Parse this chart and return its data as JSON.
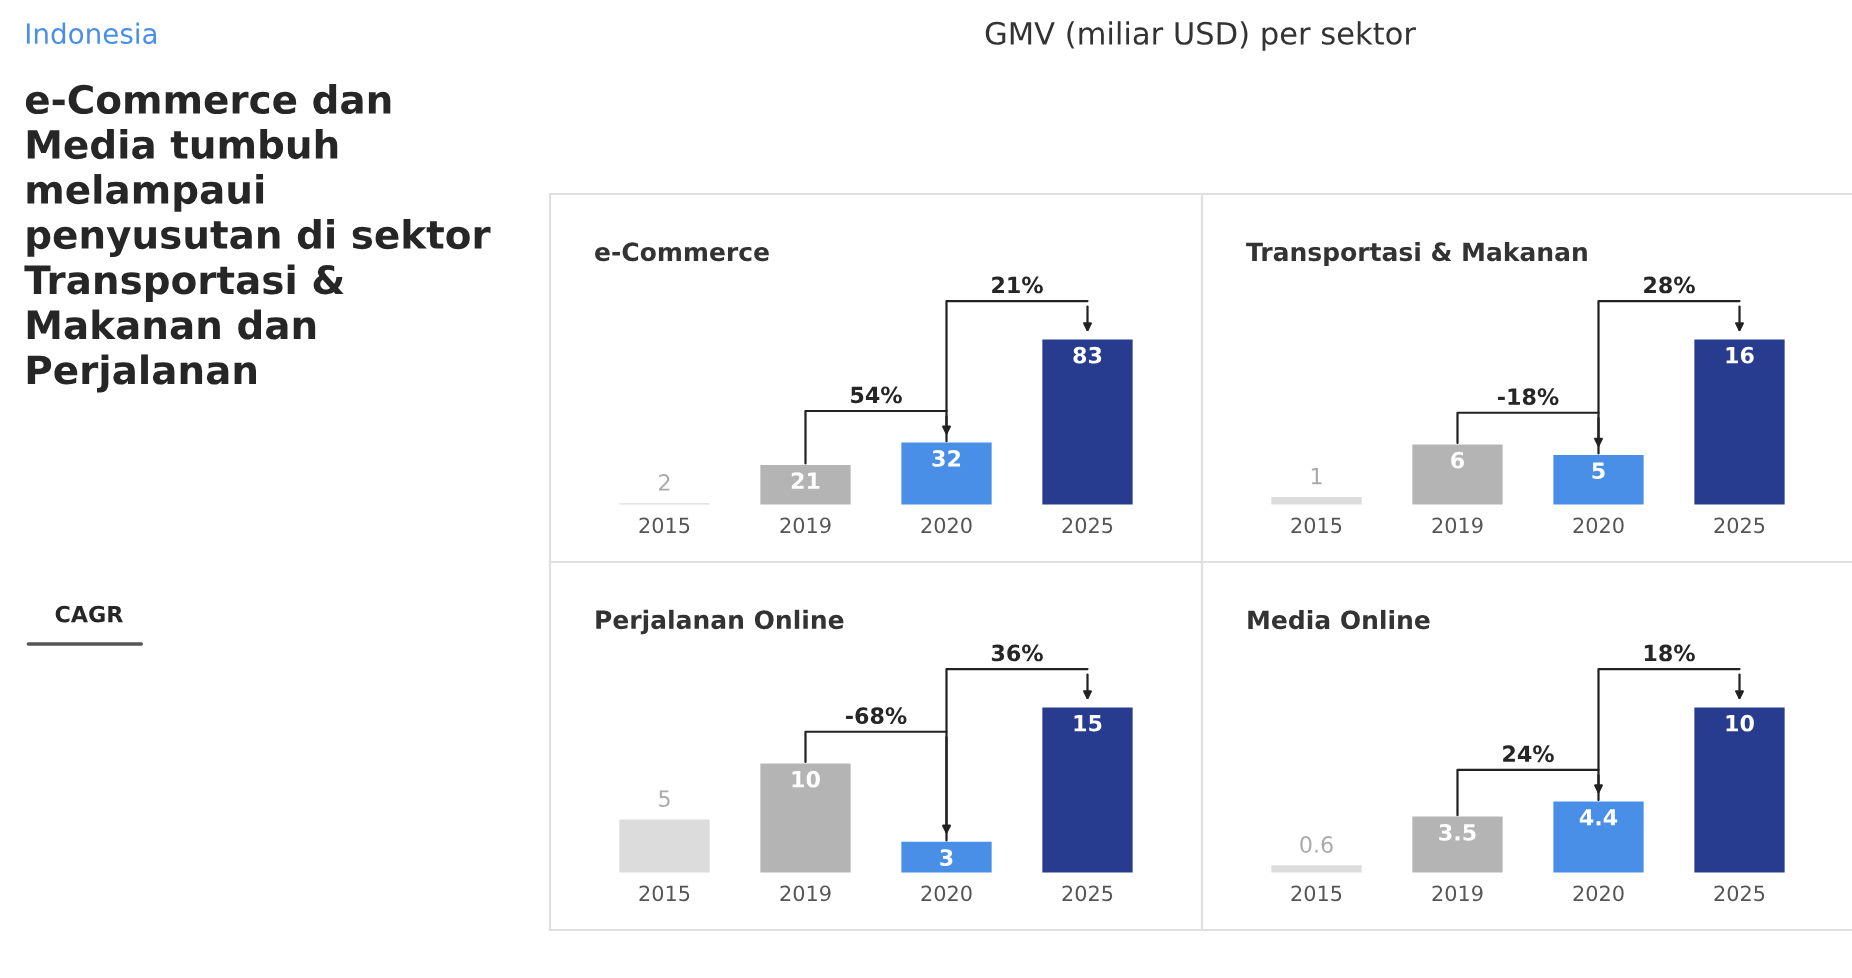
{
  "chart_data": [
    {
      "type": "other",
      "subtitle": "Indonesia",
      "title": "e-Commerce dan Media tumbuh melampaui penyusutan di sektor Transportasi & Makanan dan Perjalanan",
      "annotations": [
        "CAGR",
        "GMV (miliar USD) per sektor"
      ]
    },
    {
      "type": "bar",
      "title": "e-Commerce",
      "categories": [
        "2015",
        "2019",
        "2020",
        "2025"
      ],
      "values": [
        2,
        21,
        32,
        83
      ],
      "colors": [
        "#dcdcdc",
        "#b4b4b4",
        "#4a8fe7",
        "#283c8f"
      ],
      "data_labels": true,
      "tick_labels": "x",
      "annotations": [
        "54%",
        "21%"
      ]
    },
    {
      "type": "bar",
      "title": "Transportasi & Makanan",
      "categories": [
        "2015",
        "2019",
        "2020",
        "2025"
      ],
      "values": [
        1,
        6,
        5,
        16
      ],
      "colors": [
        "#dcdcdc",
        "#b4b4b4",
        "#4a8fe7",
        "#283c8f"
      ],
      "data_labels": true,
      "tick_labels": "x",
      "annotations": [
        "-18%",
        "28%"
      ]
    },
    {
      "type": "bar",
      "title": "Perjalanan Online",
      "categories": [
        "2015",
        "2019",
        "2020",
        "2025"
      ],
      "values": [
        5,
        10,
        3,
        15
      ],
      "colors": [
        "#dcdcdc",
        "#b4b4b4",
        "#4a8fe7",
        "#283c8f"
      ],
      "data_labels": true,
      "tick_labels": "x",
      "annotations": [
        "-68%",
        "36%"
      ]
    },
    {
      "type": "bar",
      "title": "Media Online",
      "categories": [
        "2015",
        "2019",
        "2020",
        "2025"
      ],
      "values": [
        0.6,
        3.5,
        4.4,
        10
      ],
      "colors": [
        "#dcdcdc",
        "#b4b4b4",
        "#4a8fe7",
        "#283c8f"
      ],
      "data_labels": true,
      "tick_labels": "x",
      "annotations": [
        "24%",
        "18%"
      ]
    }
  ]
}
